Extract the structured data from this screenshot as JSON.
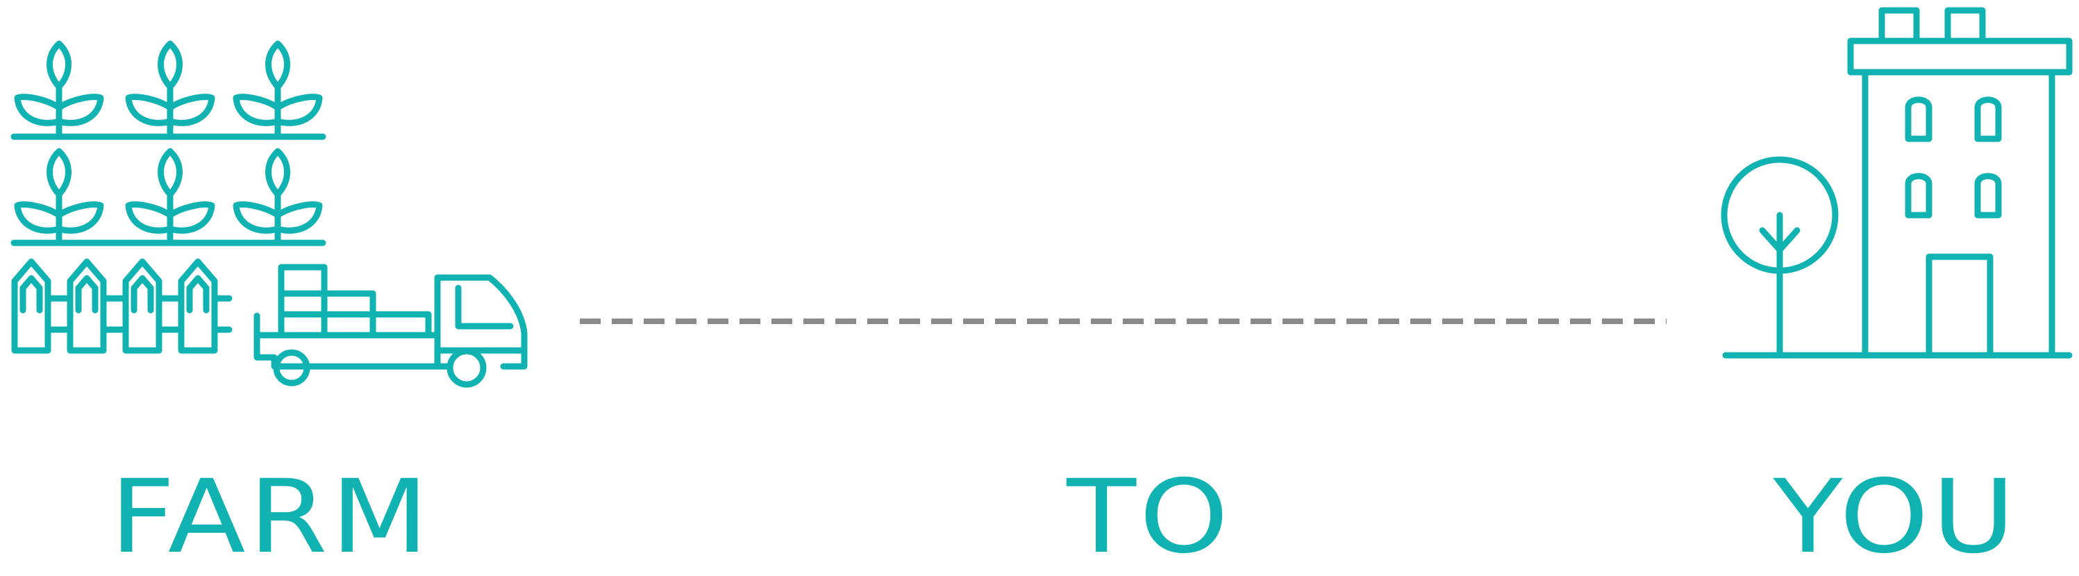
{
  "labels": {
    "farm": "FARM",
    "to": "TO",
    "you": "YOU"
  },
  "icons": {
    "farm": "farm-crops-icon",
    "fence": "fence-icon",
    "truck": "delivery-truck-icon",
    "route": "dashed-route-line",
    "tree": "tree-icon",
    "building": "apartment-building-icon"
  },
  "colors": {
    "accent": "#10b3b2",
    "route": "#8a8a8a",
    "background": "#ffffff"
  }
}
